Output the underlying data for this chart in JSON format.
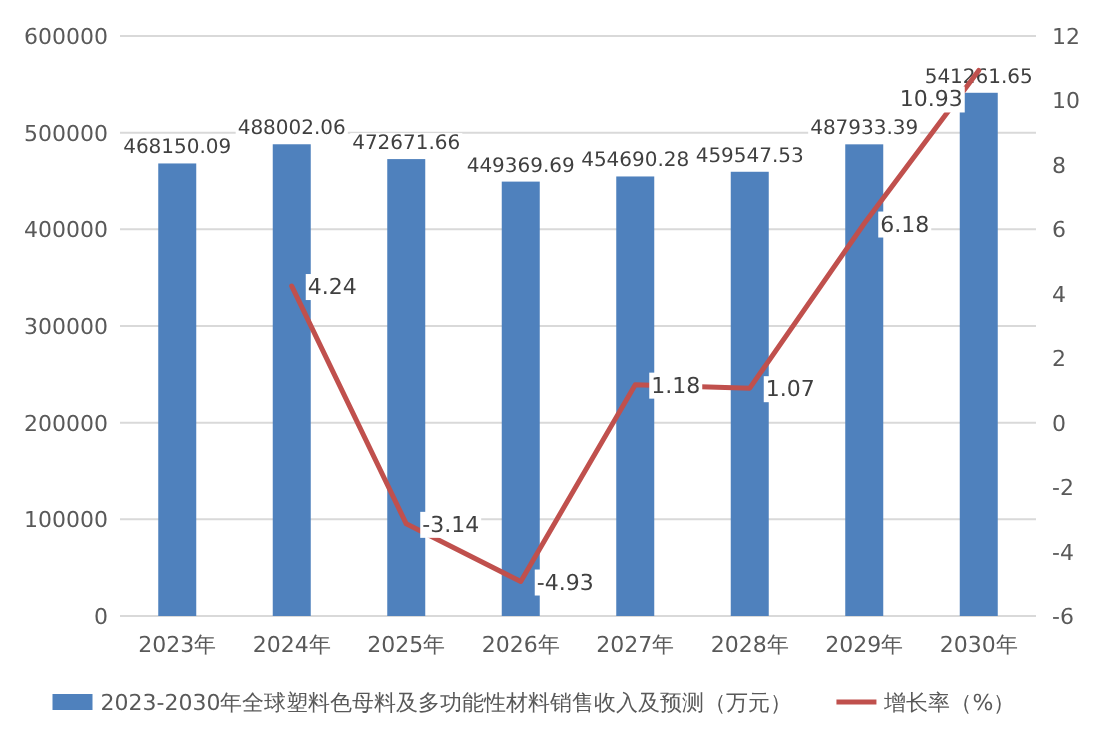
{
  "chart_data": {
    "type": "bar",
    "categories": [
      "2023年",
      "2024年",
      "2025年",
      "2026年",
      "2027年",
      "2028年",
      "2029年",
      "2030年"
    ],
    "series": [
      {
        "name": "2023-2030年全球塑料色母料及多功能性材料销售收入及预测（万元）",
        "color": "#4f81bd",
        "values": [
          468150.09,
          488002.06,
          472671.66,
          449369.69,
          454690.28,
          459547.53,
          487933.39,
          541261.65
        ]
      },
      {
        "name": "增长率（%）",
        "color": "#c0504d",
        "type": "line",
        "axis": "y2",
        "marker": "none",
        "values": [
          null,
          4.24,
          -3.14,
          -4.93,
          1.18,
          1.07,
          6.18,
          10.93
        ]
      }
    ],
    "ylim": [
      0,
      600000
    ],
    "yticks": [
      0,
      100000,
      200000,
      300000,
      400000,
      500000,
      600000
    ],
    "y2lim": [
      -6,
      12
    ],
    "y2ticks": [
      -6,
      -4,
      -2,
      0,
      2,
      4,
      6,
      8,
      10,
      12
    ],
    "grid": "y",
    "legend": "bottom",
    "data_labels": true
  }
}
